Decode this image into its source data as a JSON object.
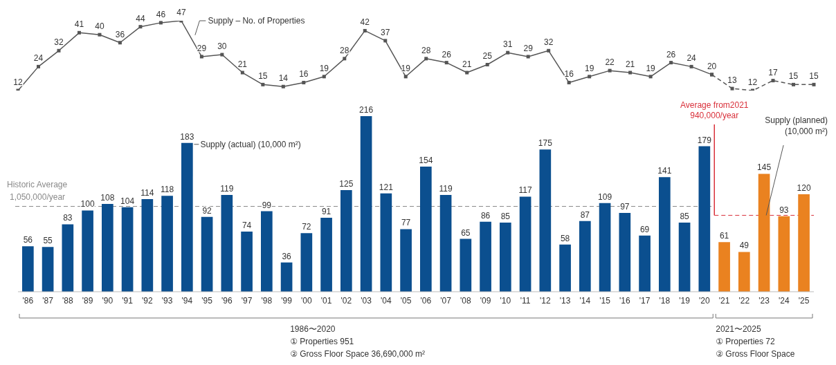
{
  "chart_data": [
    {
      "type": "line",
      "categories": [
        null,
        null,
        null,
        null,
        null,
        null,
        null,
        null,
        null,
        null,
        null,
        null,
        null,
        null,
        null,
        null,
        null,
        null,
        null,
        null,
        null,
        null,
        null,
        null,
        null,
        null,
        null,
        null,
        null,
        null,
        null,
        null,
        null,
        null,
        null,
        null,
        null,
        null,
        null,
        null
      ],
      "series": [
        {
          "name": "Supply – No. of Properties",
          "color": "#555555",
          "line_style": "solid",
          "values": [
            12,
            24,
            32,
            41,
            40,
            36,
            44,
            46,
            47,
            29,
            30,
            21,
            15,
            14,
            16,
            19,
            28,
            42,
            37,
            19,
            28,
            26,
            21,
            25,
            31,
            29,
            32,
            16,
            19,
            22,
            21,
            19,
            26,
            24,
            20,
            null,
            null,
            null,
            null,
            null
          ]
        },
        {
          "color": "#555555",
          "line_style": "dashed",
          "values": [
            null,
            null,
            null,
            null,
            null,
            null,
            null,
            null,
            null,
            null,
            null,
            null,
            null,
            null,
            null,
            null,
            null,
            null,
            null,
            null,
            null,
            null,
            null,
            null,
            null,
            null,
            null,
            null,
            null,
            null,
            null,
            null,
            null,
            null,
            20,
            13,
            12,
            17,
            15,
            15
          ],
          "value_labels": [
            null,
            null,
            null,
            null,
            null,
            null,
            null,
            null,
            null,
            null,
            null,
            null,
            null,
            null,
            null,
            null,
            null,
            null,
            null,
            null,
            null,
            null,
            null,
            null,
            null,
            null,
            null,
            null,
            null,
            null,
            null,
            null,
            null,
            null,
            null,
            "13",
            "12",
            "17",
            "15",
            "15"
          ]
        }
      ],
      "marker": "square",
      "data_labels": true,
      "tick_labels": false
    },
    {
      "type": "bar",
      "categories": [
        "'86",
        "'87",
        "'88",
        "'89",
        "'90",
        "'91",
        "'92",
        "'93",
        "'94",
        "'95",
        "'96",
        "'97",
        "'98",
        "'99",
        "'00",
        "'01",
        "'02",
        "'03",
        "'04",
        "'05",
        "'06",
        "'07",
        "'08",
        "'09",
        "'10",
        "'11",
        "'12",
        "'13",
        "'14",
        "'15",
        "'16",
        "'17",
        "'18",
        "'19",
        "'20",
        "'21",
        "'22",
        "'23",
        "'24",
        "'25"
      ],
      "series": [
        {
          "name": "Supply (actual) (10,000 m²)",
          "color": "#0b4f8f",
          "values": [
            56,
            55,
            83,
            100,
            108,
            104,
            114,
            118,
            183,
            92,
            119,
            74,
            99,
            36,
            72,
            91,
            125,
            216,
            121,
            77,
            154,
            119,
            65,
            86,
            85,
            117,
            175,
            58,
            87,
            109,
            97,
            69,
            141,
            85,
            179,
            null,
            null,
            null,
            null,
            null
          ]
        },
        {
          "name": "Supply (planned) (10,000 m²)",
          "color": "#ea8220",
          "values": [
            null,
            null,
            null,
            null,
            null,
            null,
            null,
            null,
            null,
            null,
            null,
            null,
            null,
            null,
            null,
            null,
            null,
            null,
            null,
            null,
            null,
            null,
            null,
            null,
            null,
            null,
            null,
            null,
            null,
            null,
            null,
            null,
            null,
            null,
            null,
            61,
            49,
            145,
            93,
            120
          ]
        }
      ],
      "stacked": true,
      "data_labels": true,
      "tick_labels": "x",
      "ref_lines": [
        {
          "axis": "y",
          "value": 105,
          "label": "Historic Average\n1,050,000/year",
          "color": "#8a8a8a",
          "line_style": "dashed"
        },
        {
          "axis": "y",
          "value": 94,
          "label": "Average from2021\n940,000/year",
          "color": "#d9303a",
          "line_style": "dashed"
        }
      ],
      "annotations": [
        "1986〜2020\n① Properties 951\n② Gross Floor Space 36,690,000 m²",
        "2021〜2025\n① Properties 72\n② Gross Floor Space"
      ]
    }
  ]
}
